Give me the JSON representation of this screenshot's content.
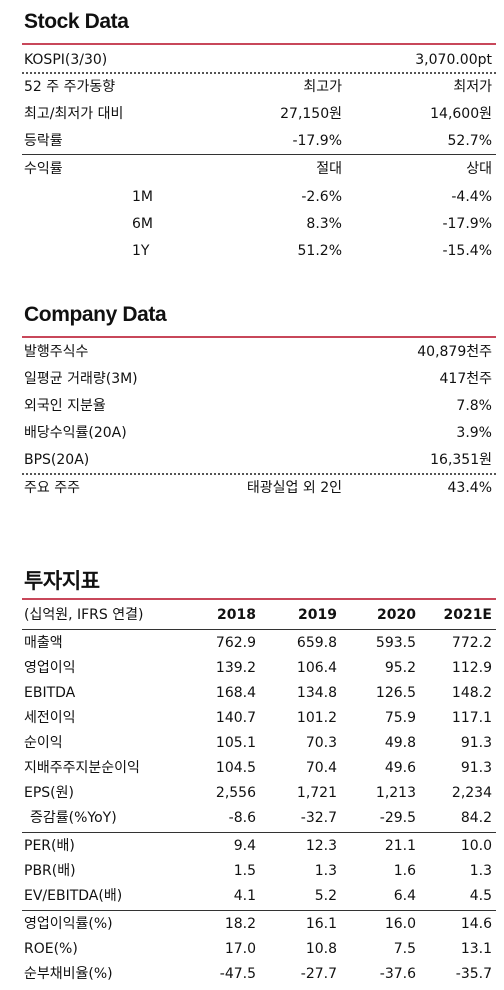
{
  "stock": {
    "title": "Stock Data",
    "kospi": {
      "label": "KOSPI(3/30)",
      "value": "3,070.00pt"
    },
    "header": {
      "label": "52 주 주가동향",
      "high": "최고가",
      "low": "최저가"
    },
    "vs_row": {
      "label": "최고/최저가 대비",
      "high": "27,150원",
      "low": "14,600원"
    },
    "change_row": {
      "label": "등락률",
      "high": "-17.9%",
      "low": "52.7%"
    },
    "return_header": {
      "label": "수익률",
      "abs": "절대",
      "rel": "상대"
    },
    "returns": [
      {
        "period": "1M",
        "abs": "-2.6%",
        "rel": "-4.4%"
      },
      {
        "period": "6M",
        "abs": "8.3%",
        "rel": "-17.9%"
      },
      {
        "period": "1Y",
        "abs": "51.2%",
        "rel": "-15.4%"
      }
    ]
  },
  "company": {
    "title": "Company Data",
    "rows": [
      {
        "label": "발행주식수",
        "value": "40,879천주"
      },
      {
        "label": "일평균 거래량(3M)",
        "value": "417천주"
      },
      {
        "label": "외국인 지분율",
        "value": "7.8%"
      },
      {
        "label": "배당수익률(20A)",
        "value": "3.9%"
      },
      {
        "label": "BPS(20A)",
        "value": "16,351원"
      }
    ],
    "holder": {
      "label": "주요 주주",
      "name": "태광실업 외 2인",
      "value": "43.4%"
    }
  },
  "invest": {
    "title": "투자지표",
    "header": {
      "label": "(십억원, IFRS 연결)",
      "years": [
        "2018",
        "2019",
        "2020",
        "2021E"
      ]
    },
    "group1": [
      {
        "label": "매출액",
        "values": [
          "762.9",
          "659.8",
          "593.5",
          "772.2"
        ]
      },
      {
        "label": "영업이익",
        "values": [
          "139.2",
          "106.4",
          "95.2",
          "112.9"
        ]
      },
      {
        "label": "EBITDA",
        "values": [
          "168.4",
          "134.8",
          "126.5",
          "148.2"
        ]
      },
      {
        "label": "세전이익",
        "values": [
          "140.7",
          "101.2",
          "75.9",
          "117.1"
        ]
      },
      {
        "label": "순이익",
        "values": [
          "105.1",
          "70.3",
          "49.8",
          "91.3"
        ]
      },
      {
        "label": "지배주주지분순이익",
        "values": [
          "104.5",
          "70.4",
          "49.6",
          "91.3"
        ]
      },
      {
        "label": "EPS(원)",
        "values": [
          "2,556",
          "1,721",
          "1,213",
          "2,234"
        ]
      },
      {
        "label": "증감률(%YoY)",
        "values": [
          "-8.6",
          "-32.7",
          "-29.5",
          "84.2"
        ]
      }
    ],
    "group2": [
      {
        "label": "PER(배)",
        "values": [
          "9.4",
          "12.3",
          "21.1",
          "10.0"
        ]
      },
      {
        "label": "PBR(배)",
        "values": [
          "1.5",
          "1.3",
          "1.6",
          "1.3"
        ]
      },
      {
        "label": "EV/EBITDA(배)",
        "values": [
          "4.1",
          "5.2",
          "6.4",
          "4.5"
        ]
      }
    ],
    "group3": [
      {
        "label": "영업이익률(%)",
        "values": [
          "18.2",
          "16.1",
          "16.0",
          "14.6"
        ]
      },
      {
        "label": "ROE(%)",
        "values": [
          "17.0",
          "10.8",
          "7.5",
          "13.1"
        ]
      },
      {
        "label": "순부채비율(%)",
        "values": [
          "-47.5",
          "-27.7",
          "-37.6",
          "-35.7"
        ]
      }
    ]
  }
}
